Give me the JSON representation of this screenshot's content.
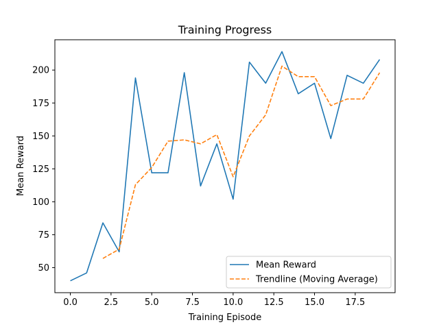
{
  "chart_data": {
    "type": "line",
    "title": "Training Progress",
    "xlabel": "Training Episode",
    "ylabel": "Mean Reward",
    "xlim": [
      -0.95,
      19.95
    ],
    "ylim": [
      31,
      223
    ],
    "xticks": [
      0.0,
      2.5,
      5.0,
      7.5,
      10.0,
      12.5,
      15.0,
      17.5
    ],
    "xtick_labels": [
      "0.0",
      "2.5",
      "5.0",
      "7.5",
      "10.0",
      "12.5",
      "15.0",
      "17.5"
    ],
    "yticks": [
      50,
      75,
      100,
      125,
      150,
      175,
      200
    ],
    "ytick_labels": [
      "50",
      "75",
      "100",
      "125",
      "150",
      "175",
      "200"
    ],
    "grid": false,
    "legend_position": "lower-right",
    "series": [
      {
        "name": "Mean Reward",
        "color": "#1f77b4",
        "style": "solid",
        "x": [
          0,
          1,
          2,
          3,
          4,
          5,
          6,
          7,
          8,
          9,
          10,
          11,
          12,
          13,
          14,
          15,
          16,
          17,
          18,
          19
        ],
        "values": [
          40,
          46,
          84,
          62,
          194,
          122,
          122,
          198,
          112,
          144,
          102,
          206,
          190,
          214,
          182,
          190,
          148,
          196,
          190,
          208
        ]
      },
      {
        "name": "Trendline (Moving Average)",
        "color": "#ff7f0e",
        "style": "dashed",
        "x": [
          2,
          3,
          4,
          5,
          6,
          7,
          8,
          9,
          10,
          11,
          12,
          13,
          14,
          15,
          16,
          17,
          18,
          19
        ],
        "values": [
          57,
          64,
          113,
          126,
          146,
          147,
          144,
          151,
          119,
          150,
          166,
          203,
          195,
          195,
          173,
          178,
          178,
          198
        ]
      }
    ]
  }
}
